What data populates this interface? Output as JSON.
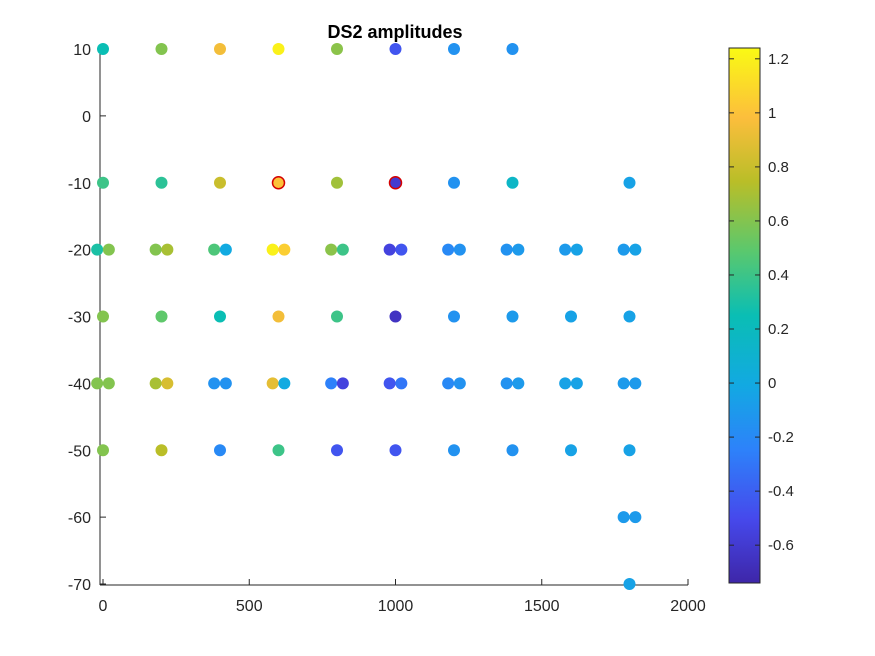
{
  "chart_data": {
    "type": "scatter",
    "title": "DS2 amplitudes",
    "xlabel": "",
    "ylabel": "",
    "xlim": [
      -10,
      2000
    ],
    "ylim": [
      -70.5,
      12
    ],
    "x_ticks": [
      0,
      500,
      1000,
      1500,
      2000
    ],
    "y_ticks": [
      10,
      0,
      -10,
      -20,
      -30,
      -40,
      -50,
      -60,
      -70
    ],
    "x_tick_labels": [
      "0",
      "500",
      "1000",
      "1500",
      "2000"
    ],
    "y_tick_labels": [
      "10",
      "0",
      "-10",
      "-20",
      "-30",
      "-40",
      "-50",
      "-60",
      "-70"
    ],
    "colormap": "parula",
    "color_range": [
      -0.74,
      1.24
    ],
    "colorbar": {
      "location": "right",
      "ticks": [
        1.2,
        1,
        0.8,
        0.6,
        0.4,
        0.2,
        0,
        -0.2,
        -0.4,
        -0.6
      ],
      "tick_labels": [
        "1.2",
        "1",
        "0.8",
        "0.6",
        "0.4",
        "0.2",
        "0",
        "-0.2",
        "-0.4",
        "-0.6"
      ]
    },
    "grid": false,
    "points": [
      {
        "x": 0,
        "y": 10,
        "amp": 0.25
      },
      {
        "x": 200,
        "y": 10,
        "amp": 0.6
      },
      {
        "x": 400,
        "y": 10,
        "amp": 0.95
      },
      {
        "x": 600,
        "y": 10,
        "amp": 1.2
      },
      {
        "x": 800,
        "y": 10,
        "amp": 0.62
      },
      {
        "x": 1000,
        "y": 10,
        "amp": -0.45
      },
      {
        "x": 1200,
        "y": 10,
        "amp": -0.15
      },
      {
        "x": 1400,
        "y": 10,
        "amp": -0.15
      },
      {
        "x": 0,
        "y": -10,
        "amp": 0.4
      },
      {
        "x": 200,
        "y": -10,
        "amp": 0.35
      },
      {
        "x": 400,
        "y": -10,
        "amp": 0.8
      },
      {
        "x": 600,
        "y": -10,
        "amp": 1.0,
        "highlight": true
      },
      {
        "x": 800,
        "y": -10,
        "amp": 0.68
      },
      {
        "x": 1000,
        "y": -10,
        "amp": -0.6,
        "highlight": true
      },
      {
        "x": 1200,
        "y": -10,
        "amp": -0.15
      },
      {
        "x": 1400,
        "y": -10,
        "amp": 0.15
      },
      {
        "x": 1800,
        "y": -10,
        "amp": -0.05
      },
      {
        "x": -20,
        "y": -20,
        "amp": 0.3
      },
      {
        "x": 20,
        "y": -20,
        "amp": 0.6
      },
      {
        "x": 180,
        "y": -20,
        "amp": 0.6
      },
      {
        "x": 220,
        "y": -20,
        "amp": 0.7
      },
      {
        "x": 380,
        "y": -20,
        "amp": 0.45
      },
      {
        "x": 420,
        "y": -20,
        "amp": 0.0
      },
      {
        "x": 580,
        "y": -20,
        "amp": 1.2
      },
      {
        "x": 620,
        "y": -20,
        "amp": 1.05
      },
      {
        "x": 780,
        "y": -20,
        "amp": 0.62
      },
      {
        "x": 820,
        "y": -20,
        "amp": 0.4
      },
      {
        "x": 980,
        "y": -20,
        "amp": -0.55
      },
      {
        "x": 1020,
        "y": -20,
        "amp": -0.45
      },
      {
        "x": 1180,
        "y": -20,
        "amp": -0.2
      },
      {
        "x": 1220,
        "y": -20,
        "amp": -0.15
      },
      {
        "x": 1380,
        "y": -20,
        "amp": -0.15
      },
      {
        "x": 1420,
        "y": -20,
        "amp": -0.1
      },
      {
        "x": 1580,
        "y": -20,
        "amp": -0.1
      },
      {
        "x": 1620,
        "y": -20,
        "amp": -0.05
      },
      {
        "x": 1780,
        "y": -20,
        "amp": -0.1
      },
      {
        "x": 1820,
        "y": -20,
        "amp": -0.05
      },
      {
        "x": 0,
        "y": -30,
        "amp": 0.6
      },
      {
        "x": 200,
        "y": -30,
        "amp": 0.5
      },
      {
        "x": 400,
        "y": -30,
        "amp": 0.25
      },
      {
        "x": 600,
        "y": -30,
        "amp": 0.95
      },
      {
        "x": 800,
        "y": -30,
        "amp": 0.4
      },
      {
        "x": 1000,
        "y": -30,
        "amp": -0.65
      },
      {
        "x": 1200,
        "y": -30,
        "amp": -0.15
      },
      {
        "x": 1400,
        "y": -30,
        "amp": -0.1
      },
      {
        "x": 1600,
        "y": -30,
        "amp": -0.05
      },
      {
        "x": 1800,
        "y": -30,
        "amp": -0.05
      },
      {
        "x": -20,
        "y": -40,
        "amp": 0.6
      },
      {
        "x": 20,
        "y": -40,
        "amp": 0.6
      },
      {
        "x": 180,
        "y": -40,
        "amp": 0.7
      },
      {
        "x": 220,
        "y": -40,
        "amp": 0.85
      },
      {
        "x": 380,
        "y": -40,
        "amp": -0.15
      },
      {
        "x": 420,
        "y": -40,
        "amp": -0.15
      },
      {
        "x": 580,
        "y": -40,
        "amp": 0.9
      },
      {
        "x": 620,
        "y": -40,
        "amp": 0.0
      },
      {
        "x": 780,
        "y": -40,
        "amp": -0.25
      },
      {
        "x": 820,
        "y": -40,
        "amp": -0.55
      },
      {
        "x": 980,
        "y": -40,
        "amp": -0.45
      },
      {
        "x": 1020,
        "y": -40,
        "amp": -0.3
      },
      {
        "x": 1180,
        "y": -40,
        "amp": -0.2
      },
      {
        "x": 1220,
        "y": -40,
        "amp": -0.15
      },
      {
        "x": 1380,
        "y": -40,
        "amp": -0.15
      },
      {
        "x": 1420,
        "y": -40,
        "amp": -0.1
      },
      {
        "x": 1580,
        "y": -40,
        "amp": -0.05
      },
      {
        "x": 1620,
        "y": -40,
        "amp": -0.05
      },
      {
        "x": 1780,
        "y": -40,
        "amp": -0.1
      },
      {
        "x": 1820,
        "y": -40,
        "amp": -0.1
      },
      {
        "x": 0,
        "y": -50,
        "amp": 0.6
      },
      {
        "x": 200,
        "y": -50,
        "amp": 0.75
      },
      {
        "x": 400,
        "y": -50,
        "amp": -0.2
      },
      {
        "x": 600,
        "y": -50,
        "amp": 0.4
      },
      {
        "x": 800,
        "y": -50,
        "amp": -0.45
      },
      {
        "x": 1000,
        "y": -50,
        "amp": -0.45
      },
      {
        "x": 1200,
        "y": -50,
        "amp": -0.15
      },
      {
        "x": 1400,
        "y": -50,
        "amp": -0.15
      },
      {
        "x": 1600,
        "y": -50,
        "amp": -0.05
      },
      {
        "x": 1800,
        "y": -50,
        "amp": -0.05
      },
      {
        "x": 1780,
        "y": -60,
        "amp": -0.1
      },
      {
        "x": 1820,
        "y": -60,
        "amp": -0.1
      },
      {
        "x": 1800,
        "y": -70,
        "amp": -0.05
      }
    ]
  }
}
